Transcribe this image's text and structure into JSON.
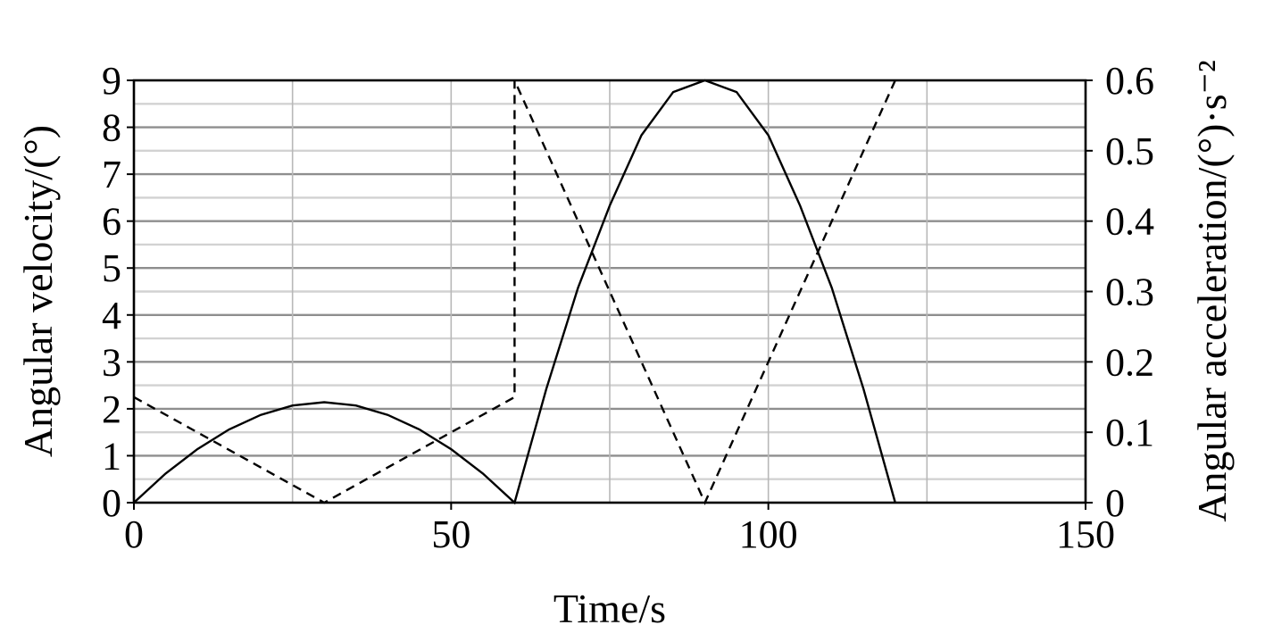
{
  "chart_data": {
    "type": "line",
    "title": "",
    "xlabel": "Time/s",
    "ylabel_left": "Angular velocity/(°)",
    "ylabel_right": "Angular acceleration/(°)·s⁻²",
    "xlim": [
      0,
      150
    ],
    "ylim_left": [
      0,
      9
    ],
    "ylim_right": [
      0,
      0.6
    ],
    "x_ticks": [
      "0",
      "50",
      "100",
      "150"
    ],
    "y_left_ticks": [
      "0",
      "1",
      "2",
      "3",
      "4",
      "5",
      "6",
      "7",
      "8",
      "9"
    ],
    "y_right_ticks": [
      "0",
      "0.1",
      "0.2",
      "0.3",
      "0.4",
      "0.5",
      "0.6"
    ],
    "grid": true,
    "series": [
      {
        "style": "solid",
        "axis": "left",
        "x": [
          0,
          5,
          10,
          15,
          20,
          25,
          30,
          35,
          40,
          45,
          50,
          55,
          60,
          60,
          65,
          70,
          75,
          80,
          85,
          90,
          95,
          100,
          105,
          110,
          115,
          120
        ],
        "y": [
          0,
          0.62,
          1.14,
          1.56,
          1.87,
          2.07,
          2.14,
          2.07,
          1.87,
          1.56,
          1.14,
          0.62,
          0,
          0,
          2.42,
          4.58,
          6.33,
          7.83,
          8.75,
          9.0,
          8.75,
          7.83,
          6.33,
          4.58,
          2.42,
          0
        ]
      },
      {
        "style": "dashed",
        "axis": "right",
        "x": [
          0,
          30,
          60,
          60,
          90,
          120
        ],
        "y": [
          0.15,
          0,
          0.15,
          0.6,
          0,
          0.6
        ]
      }
    ]
  }
}
